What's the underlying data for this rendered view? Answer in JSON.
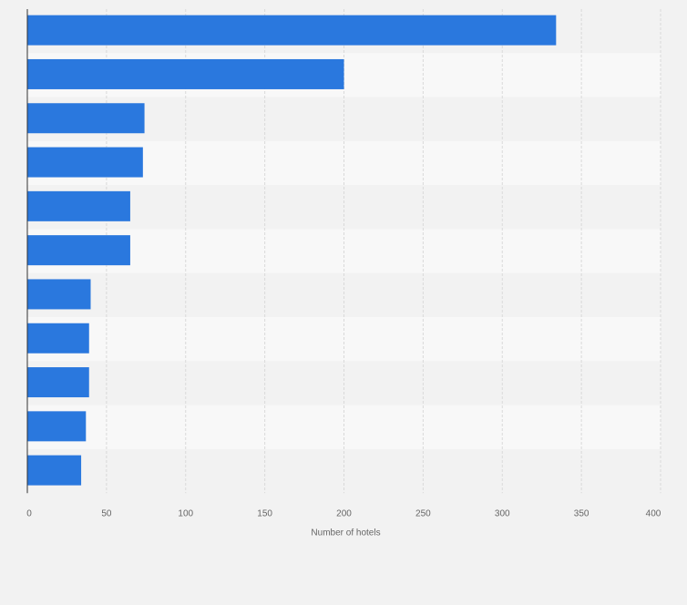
{
  "chart_data": {
    "type": "bar",
    "orientation": "horizontal",
    "categories": [
      "",
      "",
      "",
      "",
      "",
      "",
      "",
      "",
      "",
      "",
      ""
    ],
    "values": [
      334,
      200,
      74,
      73,
      65,
      65,
      40,
      39,
      39,
      37,
      34
    ],
    "xlabel": "Number of hotels",
    "ylabel": "",
    "xlim": [
      0,
      400
    ],
    "xticks": [
      "0",
      "50",
      "100",
      "150",
      "200",
      "250",
      "300",
      "350",
      "400"
    ],
    "grid": true,
    "legend": "none",
    "colors": {
      "bar": "#2a78de",
      "band_light": "#f8f8f8",
      "band_dark": "#f2f2f2",
      "grid": "#d9d9d9",
      "tick_text": "#666666"
    }
  }
}
